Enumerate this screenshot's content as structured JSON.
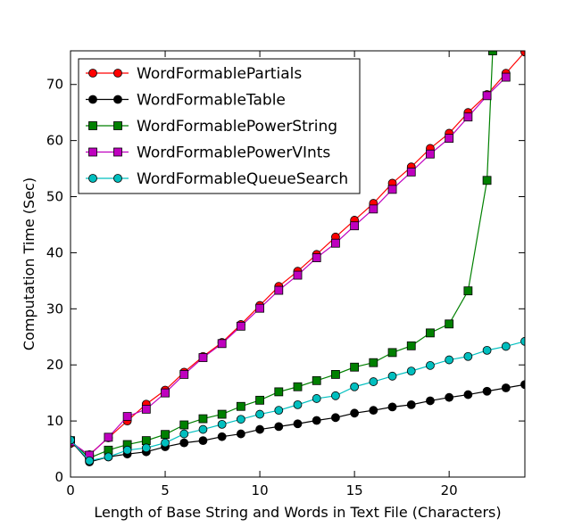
{
  "chart_data": {
    "type": "line",
    "title": "",
    "xlabel": "Length of Base String and Words in Text File (Characters)",
    "ylabel": "Computation Time (Sec)",
    "xlim": [
      0,
      24
    ],
    "ylim": [
      0,
      76
    ],
    "xticks": [
      0,
      5,
      10,
      15,
      20
    ],
    "yticks": [
      0,
      10,
      20,
      30,
      40,
      50,
      60,
      70
    ],
    "grid": false,
    "legend_position": "top-left",
    "series": [
      {
        "name": "WordFormablePartials",
        "color": "#ff0000",
        "marker": "circle",
        "x": [
          0,
          1,
          2,
          3,
          4,
          5,
          6,
          7,
          8,
          9,
          10,
          11,
          12,
          13,
          14,
          15,
          16,
          17,
          18,
          19,
          20,
          21,
          22,
          23,
          24
        ],
        "values": [
          6.0,
          4.0,
          7.0,
          10.0,
          13.0,
          15.5,
          18.7,
          21.5,
          24.0,
          27.2,
          30.6,
          34.0,
          36.7,
          39.7,
          42.8,
          45.8,
          48.8,
          52.4,
          55.3,
          58.6,
          61.3,
          65.0,
          68.2,
          72.0,
          75.8
        ]
      },
      {
        "name": "WordFormableTable",
        "color": "#000000",
        "marker": "circle",
        "x": [
          0,
          1,
          2,
          3,
          4,
          5,
          6,
          7,
          8,
          9,
          10,
          11,
          12,
          13,
          14,
          15,
          16,
          17,
          18,
          19,
          20,
          21,
          22,
          23,
          24
        ],
        "values": [
          6.5,
          2.7,
          3.6,
          4.1,
          4.5,
          5.4,
          6.1,
          6.5,
          7.2,
          7.7,
          8.5,
          9.0,
          9.5,
          10.1,
          10.6,
          11.4,
          11.9,
          12.5,
          12.9,
          13.6,
          14.2,
          14.7,
          15.3,
          15.9,
          16.5
        ]
      },
      {
        "name": "WordFormablePowerString",
        "color": "#008000",
        "marker": "square",
        "x": [
          0,
          1,
          2,
          3,
          4,
          5,
          6,
          7,
          8,
          9,
          10,
          11,
          12,
          13,
          14,
          15,
          16,
          17,
          18,
          19,
          20,
          21,
          22,
          22.3
        ],
        "values": [
          6.5,
          3.4,
          4.8,
          5.8,
          6.5,
          7.6,
          9.3,
          10.4,
          11.2,
          12.6,
          13.7,
          15.2,
          16.1,
          17.2,
          18.3,
          19.6,
          20.4,
          22.2,
          23.4,
          25.7,
          27.3,
          33.2,
          52.9,
          76.0
        ]
      },
      {
        "name": "WordFormablePowerVInts",
        "color": "#bf00bf",
        "marker": "square",
        "x": [
          0,
          1,
          2,
          3,
          4,
          5,
          6,
          7,
          8,
          9,
          10,
          11,
          12,
          13,
          14,
          15,
          16,
          17,
          18,
          19,
          20,
          21,
          22,
          23
        ],
        "values": [
          6.3,
          3.9,
          7.1,
          10.8,
          12.1,
          15.0,
          18.3,
          21.3,
          23.8,
          26.9,
          30.1,
          33.3,
          36.0,
          39.1,
          41.7,
          44.8,
          47.8,
          51.3,
          54.4,
          57.6,
          60.4,
          64.2,
          68.0,
          71.3
        ]
      },
      {
        "name": "WordFormableQueueSearch",
        "color": "#00bfbf",
        "marker": "circle",
        "x": [
          0,
          1,
          2,
          3,
          4,
          5,
          6,
          7,
          8,
          9,
          10,
          11,
          12,
          13,
          14,
          15,
          16,
          17,
          18,
          19,
          20,
          21,
          22,
          23,
          24
        ],
        "values": [
          6.6,
          2.9,
          3.6,
          4.8,
          5.2,
          6.1,
          7.7,
          8.5,
          9.4,
          10.3,
          11.2,
          11.9,
          12.9,
          14.0,
          14.5,
          16.1,
          17.0,
          18.0,
          18.9,
          19.9,
          20.9,
          21.5,
          22.6,
          23.3,
          24.2
        ]
      }
    ]
  }
}
